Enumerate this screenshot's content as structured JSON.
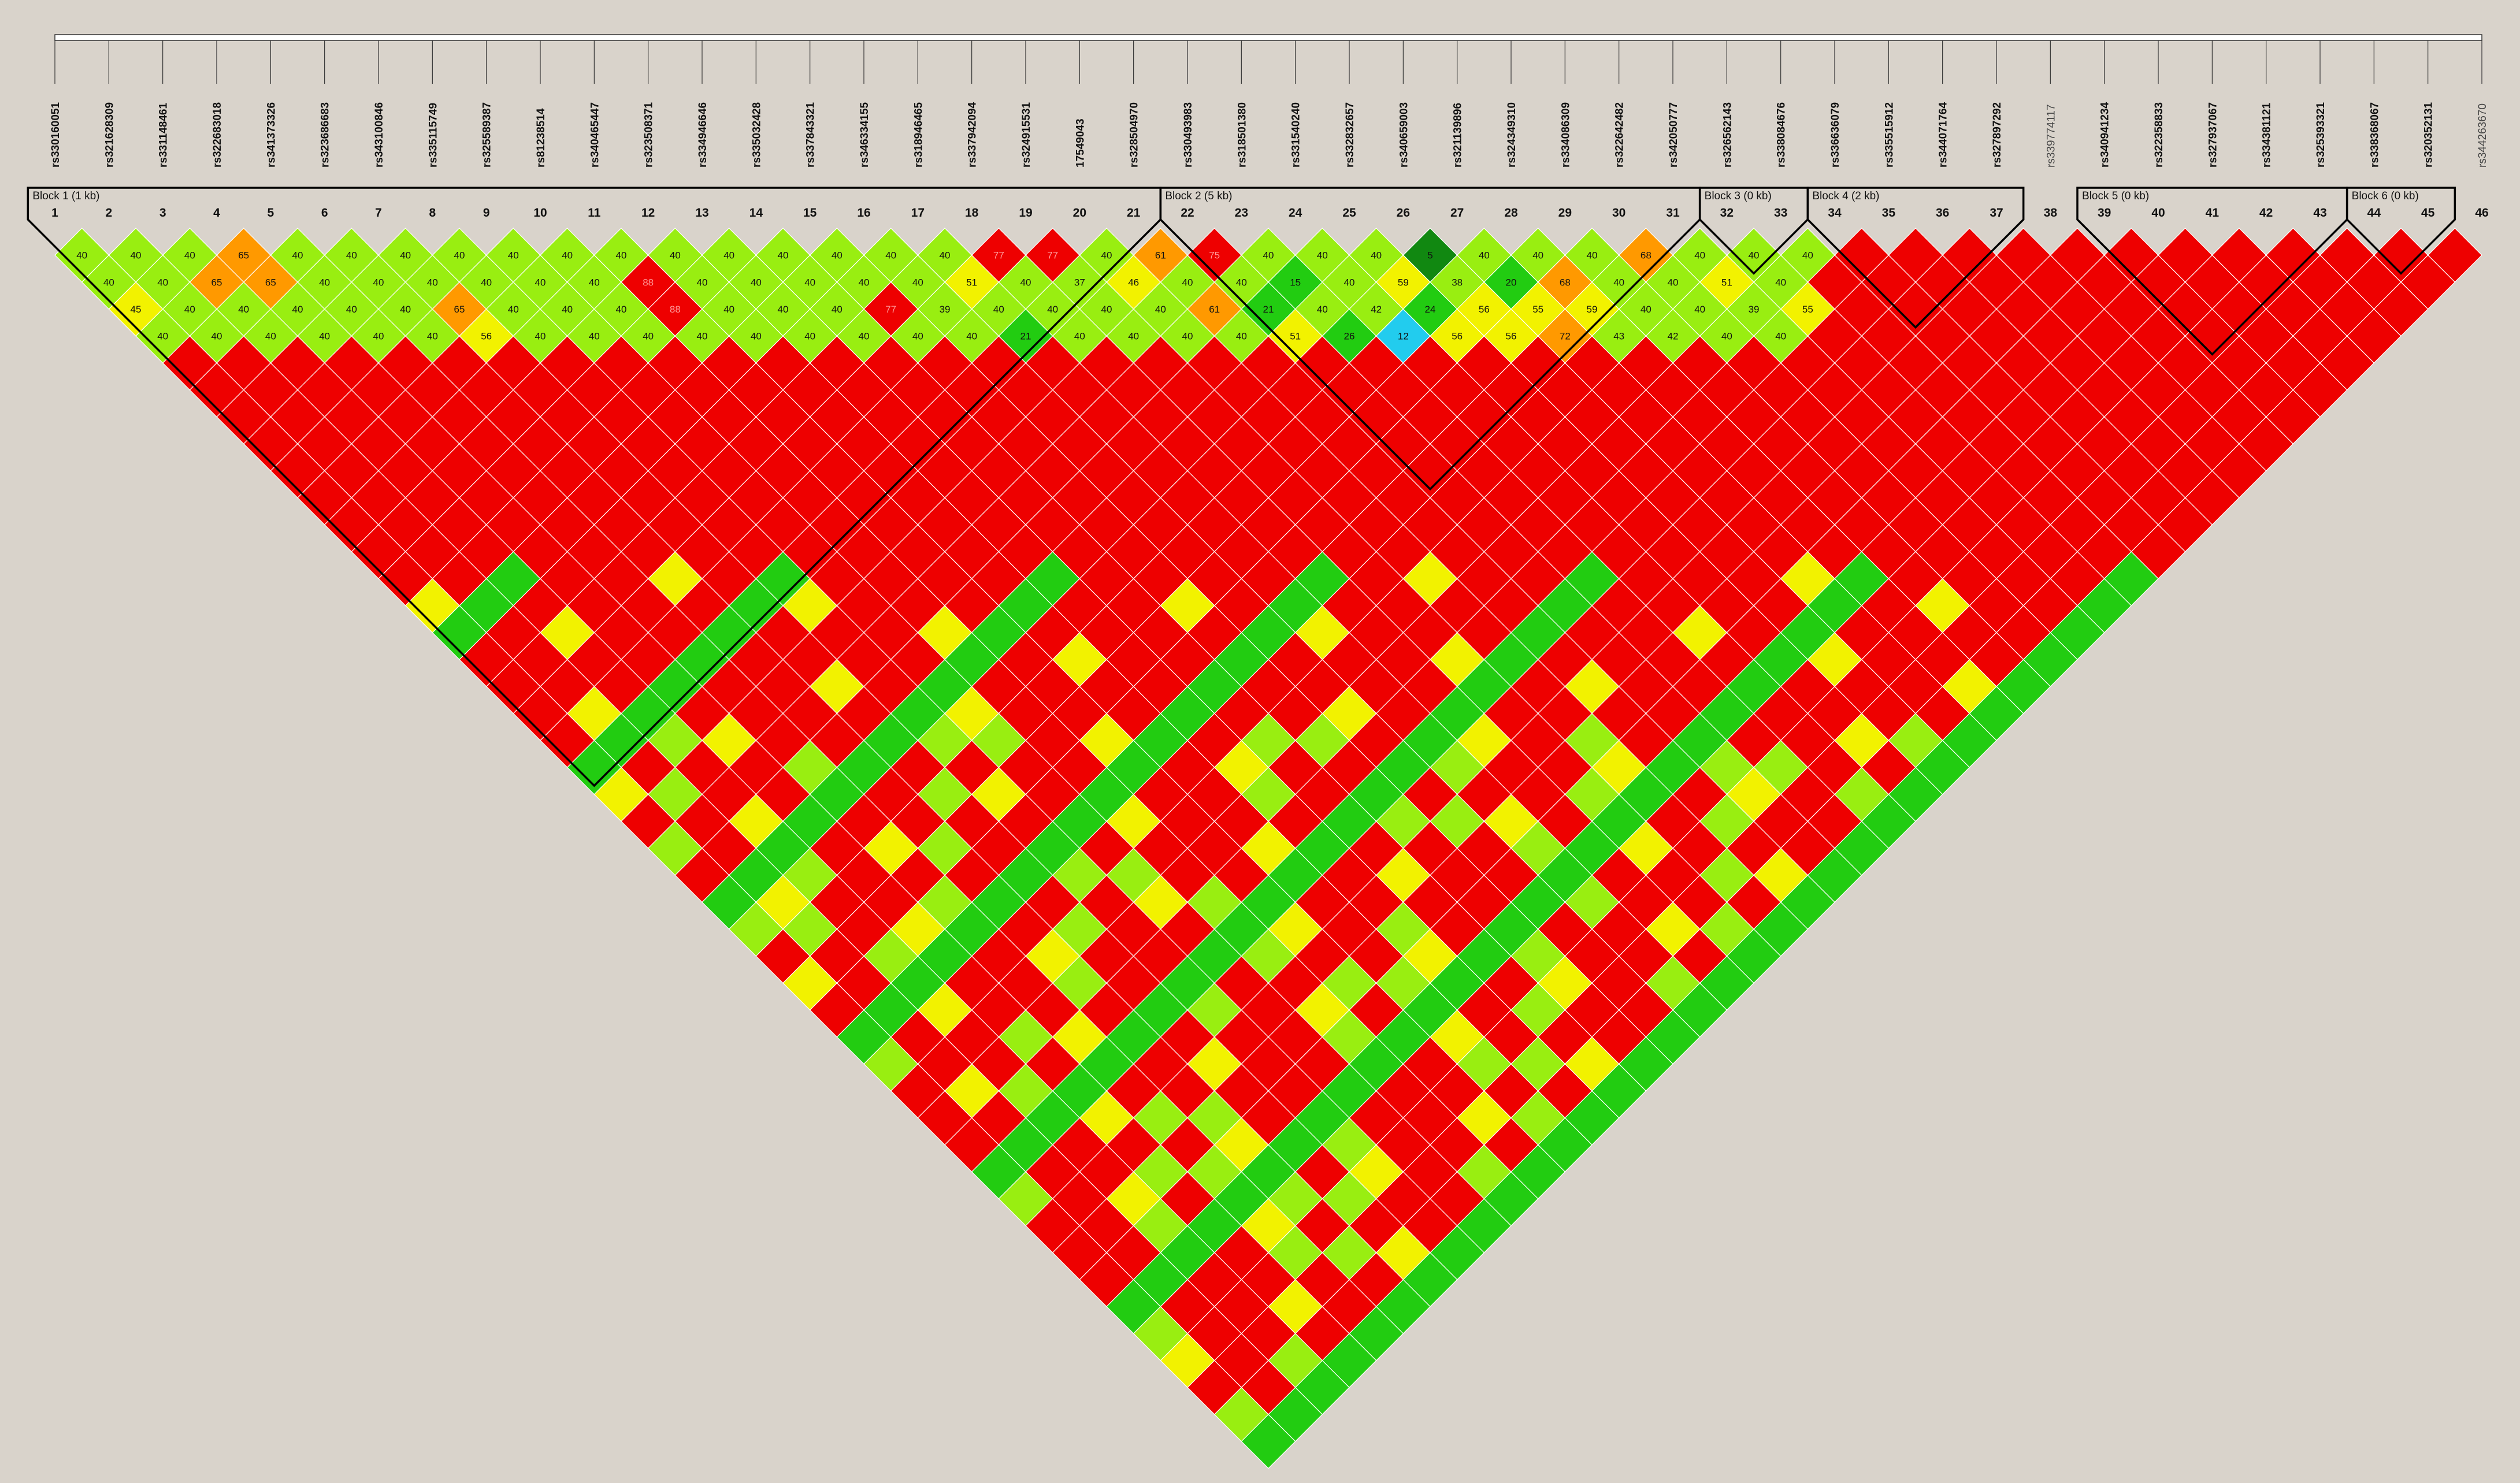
{
  "snps": [
    {
      "index": "1",
      "name": "rs330160051",
      "typed": true
    },
    {
      "index": "2",
      "name": "rs321628309",
      "typed": true
    },
    {
      "index": "3",
      "name": "rs331148461",
      "typed": true
    },
    {
      "index": "4",
      "name": "rs322683018",
      "typed": true
    },
    {
      "index": "5",
      "name": "rs341373326",
      "typed": true
    },
    {
      "index": "6",
      "name": "rs323686683",
      "typed": true
    },
    {
      "index": "7",
      "name": "rs343100846",
      "typed": true
    },
    {
      "index": "8",
      "name": "rs335115749",
      "typed": true
    },
    {
      "index": "9",
      "name": "rs325589387",
      "typed": true
    },
    {
      "index": "10",
      "name": "rs81238514",
      "typed": true
    },
    {
      "index": "11",
      "name": "rs340465447",
      "typed": true
    },
    {
      "index": "12",
      "name": "rs323508371",
      "typed": true
    },
    {
      "index": "13",
      "name": "rs334946646",
      "typed": true
    },
    {
      "index": "14",
      "name": "rs335032428",
      "typed": true
    },
    {
      "index": "15",
      "name": "rs337843321",
      "typed": true
    },
    {
      "index": "16",
      "name": "rs346334155",
      "typed": true
    },
    {
      "index": "17",
      "name": "rs318946465",
      "typed": true
    },
    {
      "index": "18",
      "name": "rs337942094",
      "typed": true
    },
    {
      "index": "19",
      "name": "rs324915531",
      "typed": true
    },
    {
      "index": "20",
      "name": "17549043",
      "typed": true
    },
    {
      "index": "21",
      "name": "rs328504970",
      "typed": true
    },
    {
      "index": "22",
      "name": "rs330493983",
      "typed": true
    },
    {
      "index": "23",
      "name": "rs318501380",
      "typed": true
    },
    {
      "index": "24",
      "name": "rs331540240",
      "typed": true
    },
    {
      "index": "25",
      "name": "rs332832657",
      "typed": true
    },
    {
      "index": "26",
      "name": "rs340659003",
      "typed": true
    },
    {
      "index": "27",
      "name": "rs321139896",
      "typed": true
    },
    {
      "index": "28",
      "name": "rs324349310",
      "typed": true
    },
    {
      "index": "29",
      "name": "rs334086309",
      "typed": true
    },
    {
      "index": "30",
      "name": "rs322642482",
      "typed": true
    },
    {
      "index": "31",
      "name": "rs342050777",
      "typed": true
    },
    {
      "index": "32",
      "name": "rs326562143",
      "typed": true
    },
    {
      "index": "33",
      "name": "rs338084676",
      "typed": true
    },
    {
      "index": "34",
      "name": "rs336636079",
      "typed": true
    },
    {
      "index": "35",
      "name": "rs335515912",
      "typed": true
    },
    {
      "index": "36",
      "name": "rs344071764",
      "typed": true
    },
    {
      "index": "37",
      "name": "rs327897292",
      "typed": true
    },
    {
      "index": "38",
      "name": "rs339774117",
      "typed": false
    },
    {
      "index": "39",
      "name": "rs340941234",
      "typed": true
    },
    {
      "index": "40",
      "name": "rs322358833",
      "typed": true
    },
    {
      "index": "41",
      "name": "rs327937067",
      "typed": true
    },
    {
      "index": "42",
      "name": "rs334381121",
      "typed": true
    },
    {
      "index": "43",
      "name": "rs325393321",
      "typed": true
    },
    {
      "index": "44",
      "name": "rs338368067",
      "typed": true
    },
    {
      "index": "45",
      "name": "rs320352131",
      "typed": true
    },
    {
      "index": "46",
      "name": "rs344263670",
      "typed": false
    }
  ],
  "blocks": [
    {
      "label": "Block 1 (1 kb)",
      "from": 1,
      "to": 21
    },
    {
      "label": "Block 2 (5 kb)",
      "from": 22,
      "to": 31
    },
    {
      "label": "Block 3 (0 kb)",
      "from": 32,
      "to": 33
    },
    {
      "label": "Block 4 (2 kb)",
      "from": 34,
      "to": 37
    },
    {
      "label": "Block 5 (0 kb)",
      "from": 39,
      "to": 43
    },
    {
      "label": "Block 6 (0 kb)",
      "from": 44,
      "to": 45
    }
  ],
  "colors": {
    "background": "#d9d3cb",
    "strong_ld": "#ee0000",
    "high": "#ff9900",
    "medium": "#f2f200",
    "low_medium": "#99ee11",
    "low": "#22cc11",
    "very_low": "#118811",
    "cyan": "#22ccee",
    "blue": "#1188ee",
    "dark_blue": "#1111bb",
    "cell_border": "#ffffff",
    "block_outline": "#000000"
  },
  "ld_values": [
    [
      "40",
      "40",
      "40",
      "65",
      "40",
      "40",
      "40",
      "40",
      "40",
      "40",
      "40",
      "40",
      "40",
      "40",
      "40",
      "40",
      "40",
      "77",
      "77",
      "40",
      "61",
      "75",
      "40",
      "40",
      "40",
      "5",
      "40",
      "40",
      "40",
      "68",
      "40",
      "40",
      "40",
      "",
      "",
      "",
      "",
      "",
      "",
      "",
      "",
      "",
      "",
      "",
      "",
      ""
    ],
    [
      "40",
      "40",
      "65",
      "65",
      "40",
      "40",
      "40",
      "40",
      "40",
      "40",
      "88",
      "40",
      "40",
      "40",
      "40",
      "40",
      "51",
      "40",
      "37",
      "46",
      "40",
      "40",
      "15",
      "40",
      "59",
      "38",
      "20",
      "68",
      "40",
      "40",
      "51",
      "40",
      "",
      "",
      "",
      "",
      "",
      "",
      "",
      "",
      "",
      "",
      "",
      "",
      "",
      ""
    ],
    [
      "45",
      "40",
      "40",
      "40",
      "40",
      "40",
      "65",
      "40",
      "40",
      "40",
      "88",
      "40",
      "40",
      "40",
      "77",
      "39",
      "40",
      "40",
      "40",
      "40",
      "61",
      "21",
      "40",
      "42",
      "24",
      "56",
      "55",
      "59",
      "40",
      "40",
      "39",
      "55",
      "",
      "",
      "",
      "",
      "",
      "",
      "",
      "",
      "",
      "",
      "",
      "",
      "",
      ""
    ],
    [
      "40",
      "40",
      "40",
      "40",
      "40",
      "40",
      "56",
      "40",
      "40",
      "40",
      "40",
      "40",
      "40",
      "40",
      "40",
      "40",
      "21",
      "40",
      "40",
      "40",
      "40",
      "51",
      "26",
      "12",
      "56",
      "56",
      "72",
      "43",
      "42",
      "40",
      "40",
      "",
      "",
      "",
      "",
      "",
      "",
      "",
      "",
      "",
      "",
      "",
      "",
      "",
      "",
      ""
    ]
  ],
  "legend": {}
}
